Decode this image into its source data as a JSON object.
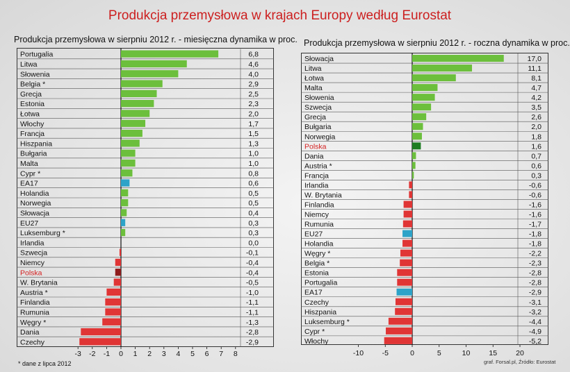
{
  "title": "Produkcja przemysłowa w krajach Europy według Eurostat",
  "footnote": "* dane z lipca 2012",
  "source": "graf. Forsal.pl, Źródło: Eurostat",
  "colors": {
    "positive": "#6cbf3c",
    "negative": "#e03535",
    "highlight_pos": "#1e7d22",
    "highlight_neg": "#8f1c1c",
    "eu": "#2da3c8",
    "red_label": "#d42020"
  },
  "chart_data": [
    {
      "type": "bar",
      "orientation": "horizontal",
      "title": "Produkcja przemysłowa w sierpniu 2012 r. - miesięczna dynamika w proc.",
      "xlim": [
        -3,
        8
      ],
      "xticks": [
        "-3",
        "-2",
        "-1",
        "0",
        "1",
        "2",
        "3",
        "4",
        "5",
        "6",
        "7",
        "8"
      ],
      "categories": [
        "Portugalia",
        "Litwa",
        "Słowenia",
        "Belgia *",
        "Grecja",
        "Estonia",
        "Łotwa",
        "Włochy",
        "Francja",
        "Hiszpania",
        "Bułgaria",
        "Malta",
        "Cypr *",
        "EA17",
        "Holandia",
        "Norwegia",
        "Słowacja",
        "EU27",
        "Luksemburg *",
        "Irlandia",
        "Szwecja",
        "Niemcy",
        "Polska",
        "W. Brytania",
        "Austria *",
        "Finlandia",
        "Rumunia",
        "Węgry *",
        "Dania",
        "Czechy"
      ],
      "values": [
        6.8,
        4.6,
        4.0,
        2.9,
        2.5,
        2.3,
        2.0,
        1.7,
        1.5,
        1.3,
        1.0,
        1.0,
        0.8,
        0.6,
        0.5,
        0.5,
        0.4,
        0.3,
        0.3,
        0.0,
        -0.1,
        -0.4,
        -0.4,
        -0.5,
        -1.0,
        -1.1,
        -1.1,
        -1.3,
        -2.8,
        -2.9
      ],
      "value_labels": [
        "6,8",
        "4,6",
        "4,0",
        "2,9",
        "2,5",
        "2,3",
        "2,0",
        "1,7",
        "1,5",
        "1,3",
        "1,0",
        "1,0",
        "0,8",
        "0,6",
        "0,5",
        "0,5",
        "0,4",
        "0,3",
        "0,3",
        "0,0",
        "-0,1",
        "-0,4",
        "-0,4",
        "-0,5",
        "-1,0",
        "-1,1",
        "-1,1",
        "-1,3",
        "-2,8",
        "-2,9"
      ],
      "highlight": "Polska",
      "eu_series": [
        "EA17",
        "EU27"
      ]
    },
    {
      "type": "bar",
      "orientation": "horizontal",
      "title": "Produkcja przemysłowa w sierpniu 2012 r. - roczna dynamika w proc.",
      "xlim": [
        -10,
        20
      ],
      "xticks": [
        "-10",
        "-5",
        "0",
        "5",
        "10",
        "15",
        "20"
      ],
      "categories": [
        "Słowacja",
        "Litwa",
        "Łotwa",
        "Malta",
        "Słowenia",
        "Szwecja",
        "Grecja",
        "Bułgaria",
        "Norwegia",
        "Polska",
        "Dania",
        "Austria *",
        "Francja",
        "Irlandia",
        "W. Brytania",
        "Finlandia",
        "Niemcy",
        "Rumunia",
        "EU27",
        "Holandia",
        "Węgry *",
        "Belgia *",
        "Estonia",
        "Portugalia",
        "EA17",
        "Czechy",
        "Hiszpania",
        "Luksemburg *",
        "Cypr *",
        "Włochy"
      ],
      "values": [
        17.0,
        11.1,
        8.1,
        4.7,
        4.2,
        3.5,
        2.6,
        2.0,
        1.8,
        1.6,
        0.7,
        0.6,
        0.3,
        -0.6,
        -0.6,
        -1.6,
        -1.6,
        -1.7,
        -1.8,
        -1.8,
        -2.2,
        -2.3,
        -2.8,
        -2.8,
        -2.9,
        -3.1,
        -3.2,
        -4.4,
        -4.9,
        -5.2
      ],
      "value_labels": [
        "17,0",
        "11,1",
        "8,1",
        "4,7",
        "4,2",
        "3,5",
        "2,6",
        "2,0",
        "1,8",
        "1,6",
        "0,7",
        "0,6",
        "0,3",
        "-0,6",
        "-0,6",
        "-1,6",
        "-1,6",
        "-1,7",
        "-1,8",
        "-1,8",
        "-2,2",
        "-2,3",
        "-2,8",
        "-2,8",
        "-2,9",
        "-3,1",
        "-3,2",
        "-4,4",
        "-4,9",
        "-5,2"
      ],
      "highlight": "Polska",
      "eu_series": [
        "EU27",
        "EA17"
      ]
    }
  ]
}
